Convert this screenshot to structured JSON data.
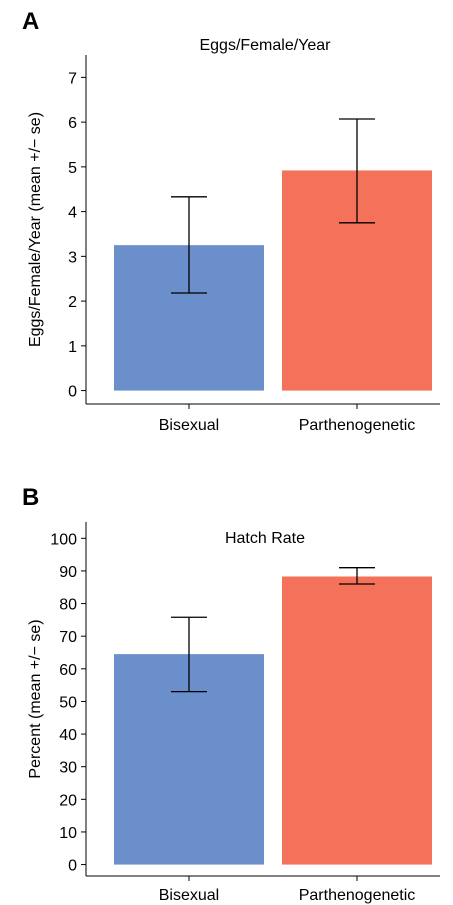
{
  "panels": [
    {
      "letter": "A"
    },
    {
      "letter": "B"
    }
  ],
  "chart_data": [
    {
      "type": "bar",
      "title": "Eggs/Female/Year",
      "xlabel": "",
      "ylabel": "Eggs/Female/Year (mean +/− se)",
      "categories": [
        "Bisexual",
        "Parthenogenetic"
      ],
      "values": [
        3.25,
        4.92
      ],
      "error_low": [
        2.18,
        3.75
      ],
      "error_high": [
        4.33,
        6.07
      ],
      "colors": [
        "#6A8FCB",
        "#F4725A"
      ],
      "ylim": [
        -0.3,
        7.5
      ],
      "yticks": [
        0,
        1,
        2,
        3,
        4,
        5,
        6,
        7
      ],
      "grid": false
    },
    {
      "type": "bar",
      "title": "Hatch Rate",
      "xlabel": "",
      "ylabel": "Percent (mean +/− se)",
      "categories": [
        "Bisexual",
        "Parthenogenetic"
      ],
      "values": [
        64.5,
        88.3
      ],
      "error_low": [
        53.0,
        86.0
      ],
      "error_high": [
        75.8,
        91.0
      ],
      "colors": [
        "#6A8FCB",
        "#F4725A"
      ],
      "ylim": [
        -3.5,
        105
      ],
      "yticks": [
        0,
        10,
        20,
        30,
        40,
        50,
        60,
        70,
        80,
        90,
        100
      ],
      "grid": false
    }
  ]
}
